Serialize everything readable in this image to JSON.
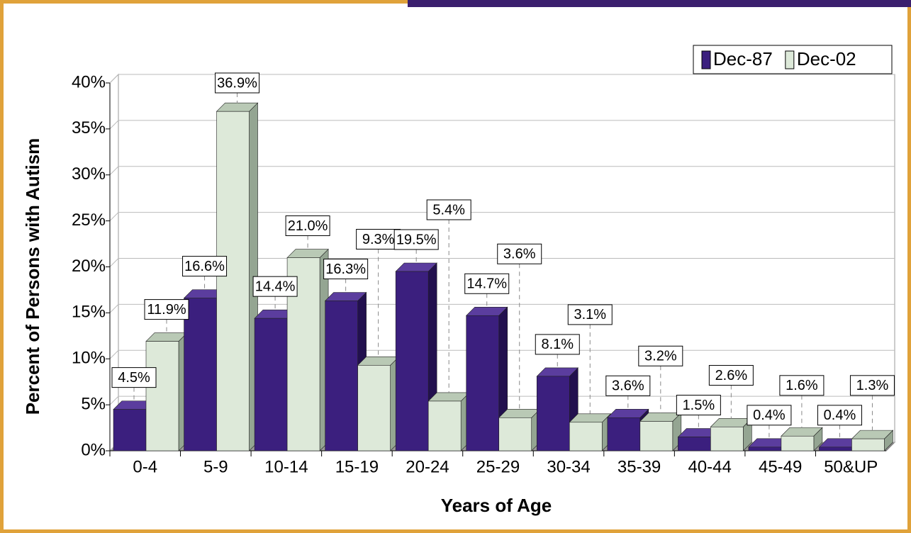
{
  "chart_data": {
    "type": "bar",
    "categories": [
      "0-4",
      "5-9",
      "10-14",
      "15-19",
      "20-24",
      "25-29",
      "30-34",
      "35-39",
      "40-44",
      "45-49",
      "50&UP"
    ],
    "series": [
      {
        "name": "Dec-87",
        "color": "#3b1f7e",
        "values": [
          4.5,
          16.6,
          14.4,
          16.3,
          19.5,
          14.7,
          8.1,
          3.6,
          1.5,
          0.4,
          0.4
        ],
        "value_labels": [
          "4.5%",
          "16.6%",
          "14.4%",
          "16.3%",
          "19.5%",
          "14.7%",
          "8.1%",
          "3.6%",
          "1.5%",
          "0.4%",
          "0.4%"
        ]
      },
      {
        "name": "Dec-02",
        "color": "#dde9d9",
        "values": [
          11.9,
          36.9,
          21.0,
          9.3,
          5.4,
          3.6,
          3.1,
          3.2,
          2.6,
          1.6,
          1.3
        ],
        "value_labels": [
          "11.9%",
          "36.9%",
          "21.0%",
          "9.3%",
          "5.4%",
          "3.6%",
          "3.1%",
          "3.2%",
          "2.6%",
          "1.6%",
          "1.3%"
        ]
      }
    ],
    "xlabel": "Years of Age",
    "ylabel": "Percent of Persons with Autism",
    "ylim": [
      0,
      40
    ],
    "yticks": [
      {
        "value": 0,
        "label": "0%"
      },
      {
        "value": 5,
        "label": "5%"
      },
      {
        "value": 10,
        "label": "10%"
      },
      {
        "value": 15,
        "label": "15%"
      },
      {
        "value": 20,
        "label": "20%"
      },
      {
        "value": 25,
        "label": "25%"
      },
      {
        "value": 30,
        "label": "30%"
      },
      {
        "value": 35,
        "label": "35%"
      },
      {
        "value": 40,
        "label": "40%"
      }
    ],
    "grid": true,
    "legend": "top-right"
  }
}
